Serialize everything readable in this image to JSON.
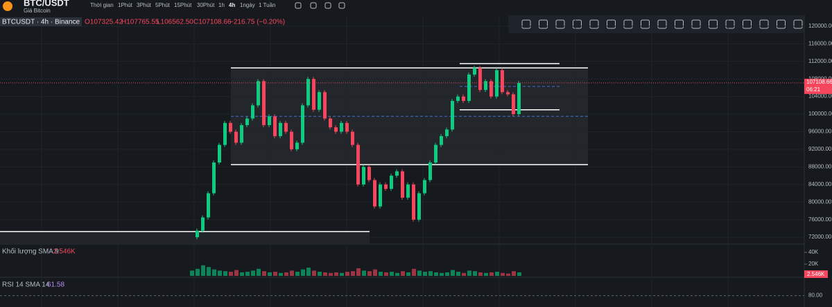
{
  "header": {
    "symbol": "BTC/USDT",
    "subtitle": "Giá Bitcoin",
    "timeframes": [
      "Thời gian",
      "1Phút",
      "3Phút",
      "5Phút",
      "15Phút",
      "30Phút",
      "1h",
      "4h",
      "1ngày",
      "1 Tuần"
    ],
    "active_index": 7
  },
  "legend": {
    "name": "BTCUSDT · 4h · Binance",
    "open": "O107325.42",
    "high": "H107765.55",
    "low": "L106562.50",
    "close": "C107108.66",
    "change": "−216.75 (−0.20%)"
  },
  "chart_data": {
    "type": "candlestick",
    "values": [
      72000,
      73500,
      76500,
      82000,
      89000,
      93000,
      98000,
      96000,
      93500,
      97500,
      99000,
      102000,
      107500,
      97500,
      99500,
      95000,
      98000,
      96000,
      92000,
      93500,
      102000,
      108000,
      101000,
      105000,
      99000,
      97000,
      96000,
      98000,
      96000,
      93000,
      84000,
      88000,
      85000,
      79000,
      84000,
      83000,
      86000,
      87000,
      81000,
      84000,
      76000,
      82000,
      85000,
      89000,
      93000,
      95000,
      96500,
      103000,
      104000,
      103000,
      109000,
      110500,
      105500,
      107500,
      104000,
      110000,
      105000,
      104500,
      100000,
      107100
    ],
    "colors": {
      "up": "#0ecb81",
      "down": "#f6465d"
    },
    "ylim": [
      70600,
      122500
    ],
    "yticks": [
      {
        "value": 72000,
        "label": "72000.00"
      },
      {
        "value": 76000,
        "label": "76000.00"
      },
      {
        "value": 80000,
        "label": "80000.00"
      },
      {
        "value": 84000,
        "label": "84000.00"
      },
      {
        "value": 88000,
        "label": "88000.00"
      },
      {
        "value": 92000,
        "label": "92000.00"
      },
      {
        "value": 96000,
        "label": "96000.00"
      },
      {
        "value": 100000,
        "label": "100000.00"
      },
      {
        "value": 104000,
        "label": "104000.00"
      },
      {
        "value": 108000,
        "label": "108000.00"
      },
      {
        "value": 112000,
        "label": "112000.00"
      },
      {
        "value": 116000,
        "label": "116000.00"
      },
      {
        "value": 120000,
        "label": "120000.00"
      }
    ],
    "levels": [
      110500,
      88500,
      111500,
      101000,
      73300
    ],
    "last_price": {
      "value": 107108.66,
      "countdown": "06:21"
    }
  },
  "volume": {
    "label": "Khối lượng SMA 9",
    "last": "2.546K",
    "ylim": [
      0,
      51800
    ],
    "yticks": [
      {
        "value": 20000,
        "label": "20K"
      },
      {
        "value": 40000,
        "label": "40K"
      }
    ],
    "values": [
      9000,
      12000,
      18000,
      15000,
      11000,
      9000,
      8000,
      7000,
      10000,
      6000,
      7000,
      9000,
      12000,
      8000,
      6000,
      7000,
      5000,
      6000,
      9000,
      7000,
      11000,
      14000,
      9000,
      7000,
      6000,
      5000,
      6000,
      5000,
      7000,
      8000,
      13000,
      9000,
      8000,
      11000,
      7000,
      6000,
      7000,
      5000,
      8000,
      6000,
      12000,
      9000,
      7000,
      8000,
      6000,
      5000,
      6000,
      10000,
      7000,
      5000,
      9000,
      8000,
      6000,
      5000,
      6000,
      7000,
      5000,
      4000,
      8000,
      6000
    ]
  },
  "rsi": {
    "label": "RSI 14 SMA 14",
    "last": "61.58",
    "ylim": [
      70,
      95
    ],
    "yticks": [
      {
        "value": 80,
        "label": "80.00"
      }
    ]
  }
}
